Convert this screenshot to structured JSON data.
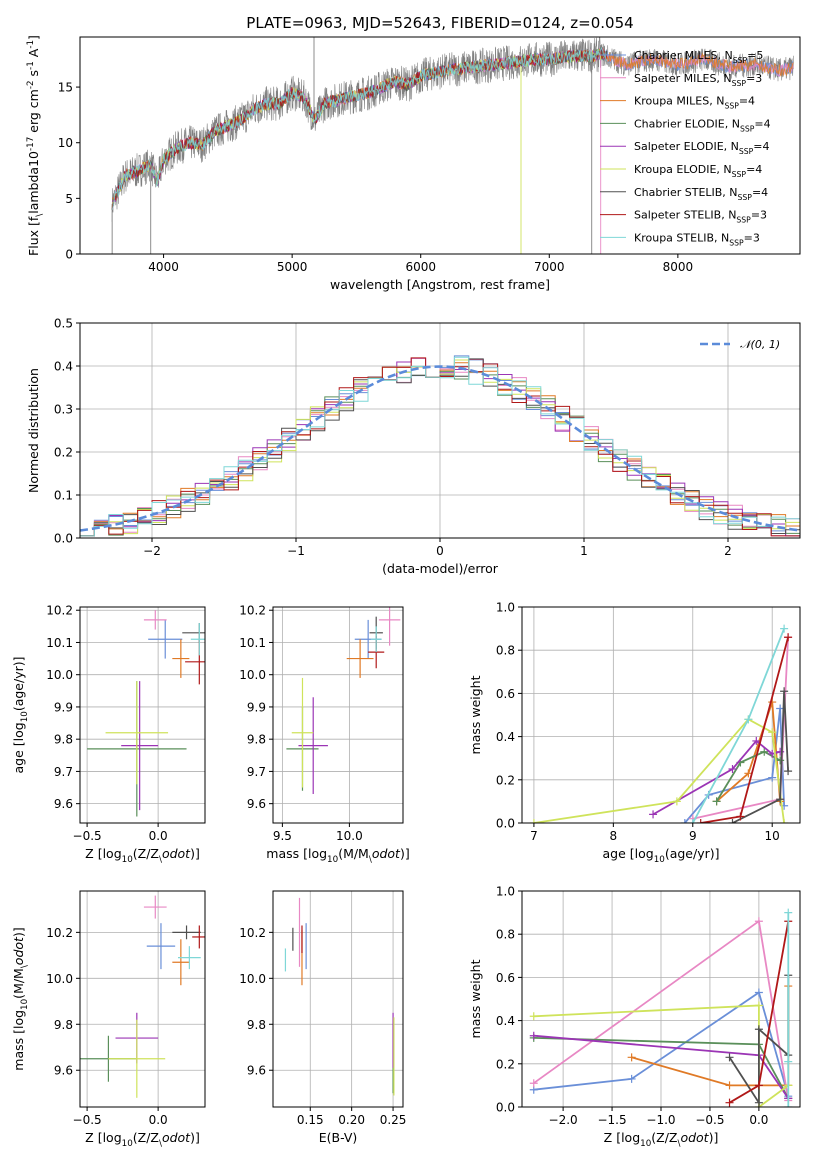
{
  "colors": {
    "Chabrier MILES": "#6a8fd8",
    "Salpeter MILES": "#e888c4",
    "Kroupa MILES": "#e07a26",
    "Chabrier ELODIE": "#5a8f5a",
    "Salpeter ELODIE": "#9b35b5",
    "Kroupa ELODIE": "#cfe35b",
    "Chabrier STELIB": "#505050",
    "Salpeter STELIB": "#b01818",
    "Kroupa STELIB": "#7fd7d7",
    "data": "#808080",
    "normal": "#5b8bd9"
  },
  "chart_data": [
    {
      "id": "spectrum",
      "type": "line",
      "title": "PLATE=0963, MJD=52643, FIBERID=0124, z=0.054",
      "xlabel": "wavelength [Angstrom, rest frame]",
      "ylabel": "Flux [f$_\\lambda$10$^{-17}$ erg cm$^{-2}$ s$^{-1}$ A$^{-1}$]",
      "xlim": [
        3350,
        8950
      ],
      "ylim": [
        0,
        19.5
      ],
      "xticks": [
        4000,
        5000,
        6000,
        7000,
        8000
      ],
      "yticks": [
        0,
        5,
        10,
        15
      ],
      "grid": false,
      "legend_position": "upper-right",
      "legend": [
        {
          "name": "Chabrier MILES",
          "nssp": "5"
        },
        {
          "name": "Salpeter MILES",
          "nssp": "3"
        },
        {
          "name": "Kroupa MILES",
          "nssp": "4"
        },
        {
          "name": "Chabrier ELODIE",
          "nssp": "4"
        },
        {
          "name": "Salpeter ELODIE",
          "nssp": "4"
        },
        {
          "name": "Kroupa ELODIE",
          "nssp": "4"
        },
        {
          "name": "Chabrier STELIB",
          "nssp": "4"
        },
        {
          "name": "Salpeter STELIB",
          "nssp": "3"
        },
        {
          "name": "Kroupa STELIB",
          "nssp": "3"
        }
      ],
      "continuum": [
        [
          3600,
          4.5
        ],
        [
          3700,
          7
        ],
        [
          3800,
          7.5
        ],
        [
          3900,
          8
        ],
        [
          3950,
          6.5
        ],
        [
          4000,
          8.5
        ],
        [
          4100,
          9.5
        ],
        [
          4200,
          10
        ],
        [
          4300,
          9.8
        ],
        [
          4400,
          11
        ],
        [
          4500,
          11.5
        ],
        [
          4600,
          12
        ],
        [
          4700,
          13
        ],
        [
          4800,
          13.5
        ],
        [
          4900,
          13.5
        ],
        [
          5000,
          14.5
        ],
        [
          5100,
          14
        ],
        [
          5175,
          12
        ],
        [
          5250,
          13.5
        ],
        [
          5400,
          14
        ],
        [
          5600,
          14.5
        ],
        [
          5800,
          15.5
        ],
        [
          5900,
          15.2
        ],
        [
          6000,
          16
        ],
        [
          6200,
          16.5
        ],
        [
          6400,
          16.8
        ],
        [
          6563,
          17
        ],
        [
          6700,
          17.2
        ],
        [
          6900,
          17.5
        ],
        [
          7000,
          17.5
        ],
        [
          7200,
          17.8
        ],
        [
          7350,
          17.8
        ],
        [
          7400,
          18
        ],
        [
          7600,
          17
        ],
        [
          7800,
          17.5
        ],
        [
          8000,
          17
        ],
        [
          8200,
          17.5
        ],
        [
          8400,
          16.8
        ],
        [
          8600,
          17
        ],
        [
          8800,
          16.5
        ],
        [
          8900,
          16.8
        ]
      ],
      "model_range": [
        3600,
        7450
      ],
      "data_spikes": [
        [
          3600,
          0
        ],
        [
          3900,
          0
        ],
        [
          5170,
          19.5
        ],
        [
          6780,
          0
        ],
        [
          7330,
          0
        ],
        [
          7400,
          0
        ]
      ]
    },
    {
      "id": "residuals",
      "type": "step",
      "xlabel": "(data-model)/error",
      "ylabel": "Normed distribution",
      "xlim": [
        -2.5,
        2.5
      ],
      "ylim": [
        0,
        0.5
      ],
      "xticks": [
        -2,
        -1,
        0,
        1,
        2
      ],
      "xtick_labels": [
        "−2",
        "−1",
        "0",
        "1",
        "2"
      ],
      "yticks": [
        0.0,
        0.1,
        0.2,
        0.3,
        0.4,
        0.5
      ],
      "grid": true,
      "bin_width": 0.1,
      "bin_range": [
        -2.5,
        2.5
      ],
      "legend": [
        {
          "name": "𝒩(0, 1)",
          "style": "dashed"
        }
      ],
      "legend_position": "upper-right"
    },
    {
      "id": "age_vs_Z",
      "type": "errorbar",
      "xlabel": "Z [log$_{10}$(Z/Z$_\\odot$)]",
      "ylabel": "age  [log$_{10}$(age/yr)]",
      "xlim": [
        -0.55,
        0.33
      ],
      "ylim": [
        9.54,
        10.21
      ],
      "xticks": [
        -0.5,
        0.0
      ],
      "xtick_labels": [
        "−0.5",
        "0.0"
      ],
      "yticks": [
        9.6,
        9.7,
        9.8,
        9.9,
        10.0,
        10.1,
        10.2
      ],
      "grid": true,
      "points": [
        {
          "model": "Chabrier MILES",
          "x": 0.05,
          "xerr": 0.12,
          "y": 10.11,
          "yerr": 0.06
        },
        {
          "model": "Salpeter MILES",
          "x": -0.02,
          "xerr": 0.08,
          "y": 10.17,
          "yerr": 0.03
        },
        {
          "model": "Kroupa MILES",
          "x": 0.16,
          "xerr": 0.06,
          "y": 10.05,
          "yerr": 0.06
        },
        {
          "model": "Chabrier ELODIE",
          "x": -0.15,
          "xerr": 0.35,
          "y": 9.77,
          "yerr": 0.21
        },
        {
          "model": "Salpeter ELODIE",
          "x": -0.13,
          "xerr": 0.13,
          "y": 9.78,
          "yerr": 0.2
        },
        {
          "model": "Kroupa ELODIE",
          "x": -0.15,
          "xerr": 0.22,
          "y": 9.82,
          "yerr": 0.16
        },
        {
          "model": "Chabrier STELIB",
          "x": 0.29,
          "xerr": 0.12,
          "y": 10.13,
          "yerr": 0.03
        },
        {
          "model": "Salpeter STELIB",
          "x": 0.29,
          "xerr": 0.1,
          "y": 10.04,
          "yerr": 0.07
        },
        {
          "model": "Kroupa STELIB",
          "x": 0.29,
          "xerr": 0.06,
          "y": 10.11,
          "yerr": 0.05
        }
      ]
    },
    {
      "id": "age_vs_mass",
      "type": "errorbar",
      "xlabel": "mass [log$_{10}$(M/M$_\\odot$)]",
      "ylabel": "",
      "xlim": [
        9.43,
        10.4
      ],
      "ylim": [
        9.54,
        10.21
      ],
      "xticks": [
        9.5,
        10.0
      ],
      "yticks": [
        9.6,
        9.7,
        9.8,
        9.9,
        10.0,
        10.1,
        10.2
      ],
      "grid": true,
      "points": [
        {
          "model": "Chabrier MILES",
          "x": 10.14,
          "xerr": 0.1,
          "y": 10.11,
          "yerr": 0.06
        },
        {
          "model": "Salpeter MILES",
          "x": 10.3,
          "xerr": 0.08,
          "y": 10.17,
          "yerr": 0.08
        },
        {
          "model": "Kroupa MILES",
          "x": 10.08,
          "xerr": 0.1,
          "y": 10.05,
          "yerr": 0.06
        },
        {
          "model": "Chabrier ELODIE",
          "x": 9.65,
          "xerr": 0.12,
          "y": 9.77,
          "yerr": 0.13
        },
        {
          "model": "Salpeter ELODIE",
          "x": 9.73,
          "xerr": 0.11,
          "y": 9.78,
          "yerr": 0.15
        },
        {
          "model": "Kroupa ELODIE",
          "x": 9.65,
          "xerr": 0.08,
          "y": 9.82,
          "yerr": 0.17
        },
        {
          "model": "Chabrier STELIB",
          "x": 10.2,
          "xerr": 0.05,
          "y": 10.13,
          "yerr": 0.05
        },
        {
          "model": "Salpeter STELIB",
          "x": 10.2,
          "xerr": 0.06,
          "y": 10.07,
          "yerr": 0.05
        },
        {
          "model": "Kroupa STELIB",
          "x": 10.2,
          "xerr": 0.04,
          "y": 10.11,
          "yerr": 0.04
        }
      ]
    },
    {
      "id": "weight_vs_age",
      "type": "line",
      "xlabel": "age  [log$_{10}$(age/yr)]",
      "ylabel": "mass weight",
      "xlim": [
        6.85,
        10.35
      ],
      "ylim": [
        0,
        1.0
      ],
      "xticks": [
        7,
        8,
        9,
        10
      ],
      "yticks": [
        0.0,
        0.2,
        0.4,
        0.6,
        0.8,
        1.0
      ],
      "grid": true,
      "series": [
        {
          "model": "Chabrier MILES",
          "x": [
            8.9,
            9.2,
            10.0,
            10.1,
            10.15
          ],
          "y": [
            0.0,
            0.13,
            0.21,
            0.53,
            0.08
          ]
        },
        {
          "model": "Salpeter MILES",
          "x": [
            9.0,
            10.1,
            10.2
          ],
          "y": [
            0.02,
            0.11,
            0.86
          ]
        },
        {
          "model": "Kroupa MILES",
          "x": [
            9.3,
            9.7,
            10.0,
            10.1
          ],
          "y": [
            0.1,
            0.23,
            0.56,
            0.1
          ]
        },
        {
          "model": "Chabrier ELODIE",
          "x": [
            9.3,
            9.6,
            9.9,
            10.1
          ],
          "y": [
            0.1,
            0.28,
            0.33,
            0.29
          ]
        },
        {
          "model": "Salpeter ELODIE",
          "x": [
            8.5,
            9.5,
            9.8,
            10.0,
            10.1
          ],
          "y": [
            0.04,
            0.25,
            0.38,
            0.32,
            0.33
          ]
        },
        {
          "model": "Kroupa ELODIE",
          "x": [
            7.0,
            8.8,
            9.7,
            10.0,
            10.15
          ],
          "y": [
            0.0,
            0.1,
            0.48,
            0.42,
            0.0
          ]
        },
        {
          "model": "Chabrier STELIB",
          "x": [
            9.5,
            10.1,
            10.15,
            10.2
          ],
          "y": [
            0.0,
            0.11,
            0.61,
            0.24
          ]
        },
        {
          "model": "Salpeter STELIB",
          "x": [
            9.1,
            9.6,
            10.2
          ],
          "y": [
            0.0,
            0.03,
            0.86
          ]
        },
        {
          "model": "Kroupa STELIB",
          "x": [
            9.0,
            9.7,
            10.15
          ],
          "y": [
            0.0,
            0.48,
            0.9
          ]
        }
      ]
    },
    {
      "id": "mass_vs_Z",
      "type": "errorbar",
      "xlabel": "Z [log$_{10}$(Z/Z$_\\odot$)]",
      "ylabel": "mass [log$_{10}$(M/M$_\\odot$)]",
      "xlim": [
        -0.55,
        0.33
      ],
      "ylim": [
        9.44,
        10.38
      ],
      "xticks": [
        -0.5,
        0.0
      ],
      "xtick_labels": [
        "−0.5",
        "0.0"
      ],
      "yticks": [
        9.6,
        9.8,
        10.0,
        10.2
      ],
      "grid": true,
      "points": [
        {
          "model": "Chabrier MILES",
          "x": 0.02,
          "xerr": 0.1,
          "y": 10.14,
          "yerr": 0.1
        },
        {
          "model": "Salpeter MILES",
          "x": -0.02,
          "xerr": 0.08,
          "y": 10.31,
          "yerr": 0.05
        },
        {
          "model": "Kroupa MILES",
          "x": 0.16,
          "xerr": 0.06,
          "y": 10.07,
          "yerr": 0.1
        },
        {
          "model": "Chabrier ELODIE",
          "x": -0.35,
          "xerr": 0.2,
          "y": 9.65,
          "yerr": 0.1
        },
        {
          "model": "Salpeter ELODIE",
          "x": -0.15,
          "xerr": 0.15,
          "y": 9.74,
          "yerr": 0.11
        },
        {
          "model": "Kroupa ELODIE",
          "x": -0.15,
          "xerr": 0.2,
          "y": 9.65,
          "yerr": 0.17
        },
        {
          "model": "Chabrier STELIB",
          "x": 0.2,
          "xerr": 0.1,
          "y": 10.2,
          "yerr": 0.03
        },
        {
          "model": "Salpeter STELIB",
          "x": 0.29,
          "xerr": 0.05,
          "y": 10.18,
          "yerr": 0.05
        },
        {
          "model": "Kroupa STELIB",
          "x": 0.22,
          "xerr": 0.08,
          "y": 10.09,
          "yerr": 0.05
        }
      ]
    },
    {
      "id": "mass_vs_EBV",
      "type": "errorbar",
      "xlabel": "E(B-V)",
      "ylabel": "",
      "xlim": [
        0.105,
        0.262
      ],
      "ylim": [
        9.44,
        10.38
      ],
      "xticks": [
        0.15,
        0.2,
        0.25
      ],
      "xtick_labels": [
        "0.15",
        "0.20",
        "0.25"
      ],
      "yticks": [
        9.6,
        9.8,
        10.0,
        10.2
      ],
      "grid": true,
      "points": [
        {
          "model": "Chabrier MILES",
          "x": 0.145,
          "xerr": 0.0,
          "y": 10.14,
          "yerr": 0.1
        },
        {
          "model": "Salpeter MILES",
          "x": 0.137,
          "xerr": 0.0,
          "y": 10.2,
          "yerr": 0.15
        },
        {
          "model": "Kroupa MILES",
          "x": 0.14,
          "xerr": 0.0,
          "y": 10.09,
          "yerr": 0.12
        },
        {
          "model": "Chabrier ELODIE",
          "x": 0.25,
          "xerr": 0.0,
          "y": 9.65,
          "yerr": 0.15
        },
        {
          "model": "Salpeter ELODIE",
          "x": 0.25,
          "xerr": 0.0,
          "y": 9.73,
          "yerr": 0.12
        },
        {
          "model": "Kroupa ELODIE",
          "x": 0.251,
          "xerr": 0.0,
          "y": 9.66,
          "yerr": 0.17
        },
        {
          "model": "Chabrier STELIB",
          "x": 0.129,
          "xerr": 0.0,
          "y": 10.17,
          "yerr": 0.05
        },
        {
          "model": "Salpeter STELIB",
          "x": 0.14,
          "xerr": 0.0,
          "y": 10.17,
          "yerr": 0.06
        },
        {
          "model": "Kroupa STELIB",
          "x": 0.12,
          "xerr": 0.0,
          "y": 10.08,
          "yerr": 0.05
        }
      ]
    },
    {
      "id": "weight_vs_Z",
      "type": "line",
      "xlabel": "Z [log$_{10}$(Z/Z$_\\odot$)]",
      "ylabel": "mass weight",
      "xlim": [
        -2.42,
        0.42
      ],
      "ylim": [
        0,
        1.0
      ],
      "xticks": [
        -2.0,
        -1.5,
        -1.0,
        -0.5,
        0.0
      ],
      "xtick_labels": [
        "−2.0",
        "−1.5",
        "−1.0",
        "−0.5",
        "0.0"
      ],
      "yticks": [
        0.0,
        0.2,
        0.4,
        0.6,
        0.8,
        1.0
      ],
      "grid": true,
      "series": [
        {
          "model": "Chabrier MILES",
          "x": [
            -2.3,
            -1.3,
            0.0,
            0.3
          ],
          "y": [
            0.08,
            0.13,
            0.53,
            0.05
          ]
        },
        {
          "model": "Salpeter MILES",
          "x": [
            -2.3,
            0.0,
            0.3
          ],
          "y": [
            0.11,
            0.86,
            0.03
          ]
        },
        {
          "model": "Kroupa MILES",
          "x": [
            -1.3,
            -0.3,
            0.0,
            0.3,
            0.3
          ],
          "y": [
            0.23,
            0.1,
            0.1,
            0.1,
            0.56
          ]
        },
        {
          "model": "Chabrier ELODIE",
          "x": [
            -2.3,
            0.0,
            0.3
          ],
          "y": [
            0.32,
            0.29,
            0.04
          ]
        },
        {
          "model": "Salpeter ELODIE",
          "x": [
            -2.3,
            0.0,
            0.3
          ],
          "y": [
            0.33,
            0.24,
            0.04
          ]
        },
        {
          "model": "Kroupa ELODIE",
          "x": [
            -2.3,
            0.0,
            0.0,
            0.3
          ],
          "y": [
            0.42,
            0.47,
            0.0,
            0.1
          ]
        },
        {
          "model": "Chabrier STELIB",
          "x": [
            -0.3,
            0.0,
            0.0,
            0.3,
            0.3
          ],
          "y": [
            0.23,
            0.02,
            0.36,
            0.24,
            0.61
          ]
        },
        {
          "model": "Salpeter STELIB",
          "x": [
            -0.3,
            0.0,
            0.3
          ],
          "y": [
            0.02,
            0.1,
            0.86
          ]
        },
        {
          "model": "Kroupa STELIB",
          "x": [
            0.3,
            0.3,
            0.3
          ],
          "y": [
            0.0,
            0.21,
            0.9
          ]
        }
      ]
    }
  ]
}
